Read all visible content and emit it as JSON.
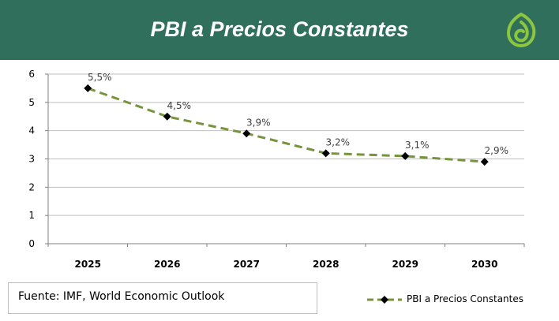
{
  "banner": {
    "title": "PBI a Precios Constantes"
  },
  "colors": {
    "banner": "#2f6f5b",
    "line": "#77933c",
    "marker": "#000000",
    "grid": "#bfbfbf"
  },
  "source": {
    "text": "Fuente: IMF, World Economic Outlook"
  },
  "legend": {
    "label": "PBI a Precios Constantes",
    "placement": "bottom-right"
  },
  "chart_data": {
    "type": "line",
    "categories": [
      "2025",
      "2026",
      "2027",
      "2028",
      "2029",
      "2030"
    ],
    "series": [
      {
        "name": "PBI a Precios Constantes",
        "values": [
          5.5,
          4.5,
          3.9,
          3.2,
          3.1,
          2.9
        ],
        "data_labels": [
          "5,5%",
          "4,5%",
          "3,9%",
          "3,2%",
          "3,1%",
          "2,9%"
        ],
        "line_style": "dashed",
        "marker": "diamond"
      }
    ],
    "ylim": [
      0,
      6
    ],
    "y_ticks": [
      "0",
      "1",
      "2",
      "3",
      "4",
      "5",
      "6"
    ],
    "grid": true
  }
}
